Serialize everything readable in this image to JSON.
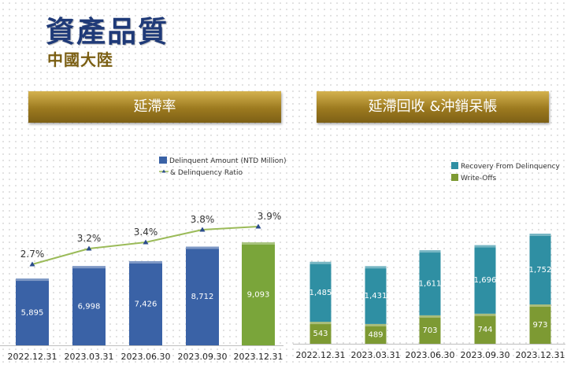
{
  "header": {
    "title": "資產品質",
    "subtitle": "中國大陸"
  },
  "left_panel": {
    "banner": "延滯率"
  },
  "right_panel": {
    "banner": "延滯回收 &沖銷呆帳"
  },
  "colors": {
    "blue": "#3a62a6",
    "green": "#7aa53a",
    "teal": "#2f8fa3",
    "olive": "#7d9a33",
    "line": "#9bbb59",
    "ratio_last": "#2b4c8c"
  },
  "chart_data": [
    {
      "type": "bar",
      "categories": [
        "2022.12.31",
        "2023.03.31",
        "2023.06.30",
        "2023.09.30",
        "2023.12.31"
      ],
      "series": [
        {
          "name": "Delinquent Amount (NTD Million)",
          "values": [
            5895,
            6998,
            7426,
            8712,
            9093
          ]
        },
        {
          "name": "& Delinquency Ratio",
          "type": "line",
          "values": [
            2.7,
            3.2,
            3.4,
            3.8,
            3.9
          ],
          "labels": [
            "2.7%",
            "3.2%",
            "3.4%",
            "3.8%",
            "3.9%"
          ]
        }
      ],
      "value_labels": [
        "5,895",
        "6,998",
        "7,426",
        "8,712",
        "9,093"
      ],
      "legend": "top-right"
    },
    {
      "type": "bar",
      "stacked": true,
      "categories": [
        "2022.12.31",
        "2023.03.31",
        "2023.06.30",
        "2023.09.30",
        "2023.12.31"
      ],
      "series": [
        {
          "name": "Recovery From Delinquency",
          "values": [
            1485,
            1431,
            1611,
            1696,
            1752
          ],
          "labels": [
            "1,485",
            "1,431",
            "1,611",
            "1,696",
            "1,752"
          ]
        },
        {
          "name": "Write-Offs",
          "values": [
            543,
            489,
            703,
            744,
            973
          ],
          "labels": [
            "543",
            "489",
            "703",
            "744",
            "973"
          ]
        }
      ],
      "legend": "top-right"
    }
  ]
}
